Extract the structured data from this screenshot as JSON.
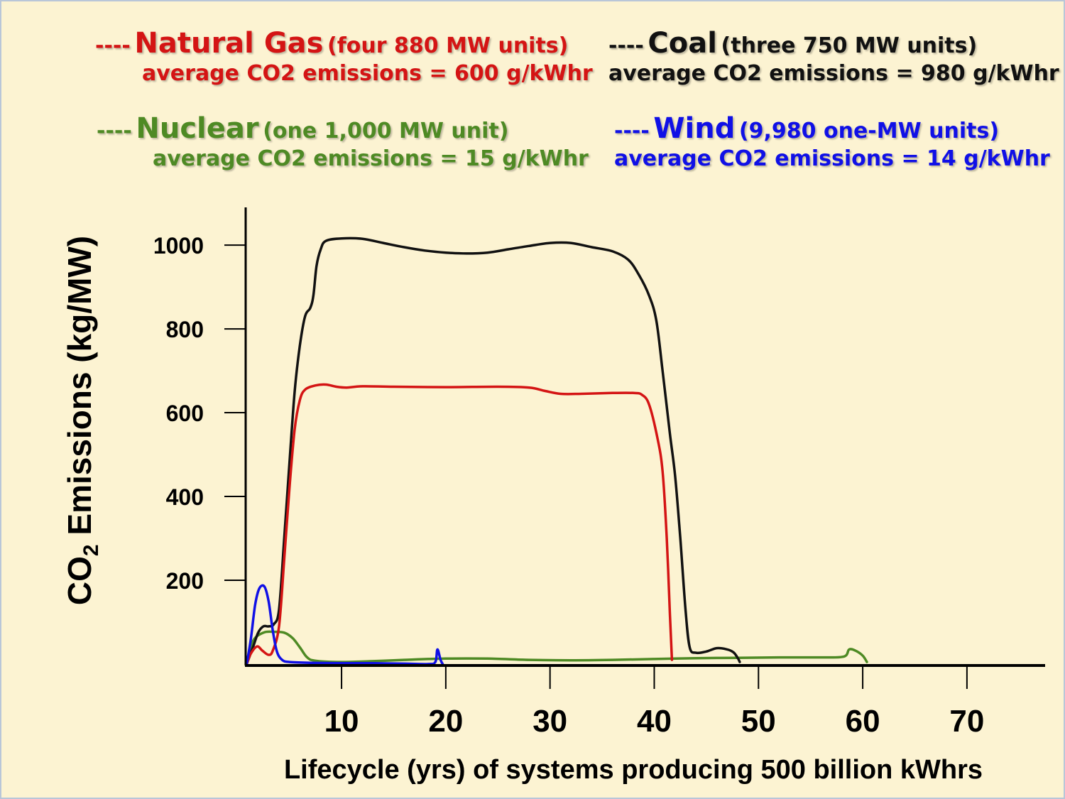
{
  "legend": {
    "gas": {
      "dash": "----",
      "name": "Natural Gas",
      "units": "(four 880 MW units)",
      "emissions": "average CO2 emissions = 600 g/kWhr",
      "color": "#d41414"
    },
    "coal": {
      "dash": "----",
      "name": "Coal",
      "units": "(three 750 MW units)",
      "emissions": "average CO2 emissions = 980 g/kWhr",
      "color": "#111111"
    },
    "nuclear": {
      "dash": "----",
      "name": "Nuclear",
      "units": "(one 1,000 MW unit)",
      "emissions": "average CO2 emissions = 15 g/kWhr",
      "color": "#4e8a24"
    },
    "wind": {
      "dash": "----",
      "name": "Wind",
      "units": "(9,980 one-MW units)",
      "emissions": "average CO2 emissions = 14 g/kWhr",
      "color": "#1010e6"
    }
  },
  "chart_data": {
    "type": "line",
    "ylabel": {
      "prefix": "CO",
      "subscript": "2",
      "suffix": " Emissions (kg/MW)"
    },
    "xlabel": "Lifecycle (yrs) of systems producing 500 billion kWhrs",
    "yticks": [
      "200",
      "400",
      "600",
      "800",
      "1000"
    ],
    "xticks": [
      "10",
      "20",
      "30",
      "40",
      "50",
      "60",
      "70"
    ],
    "ytick_values": [
      200,
      400,
      600,
      800,
      1000
    ],
    "xtick_values": [
      10,
      20,
      30,
      40,
      50,
      60,
      70
    ],
    "xlim": [
      0.8,
      77.5
    ],
    "ylim": [
      0,
      1090
    ],
    "series": [
      {
        "key": "coal",
        "name": "Coal",
        "color": "#111111",
        "points": [
          [
            0.9,
            0
          ],
          [
            1.5,
            40
          ],
          [
            2,
            75
          ],
          [
            2.5,
            90
          ],
          [
            3,
            90
          ],
          [
            3.5,
            95
          ],
          [
            4,
            130
          ],
          [
            4.5,
            300
          ],
          [
            5,
            480
          ],
          [
            5.5,
            650
          ],
          [
            6,
            760
          ],
          [
            6.5,
            830
          ],
          [
            7,
            850
          ],
          [
            7.3,
            880
          ],
          [
            7.6,
            950
          ],
          [
            8,
            990
          ],
          [
            8.5,
            1010
          ],
          [
            10,
            1016
          ],
          [
            12,
            1015
          ],
          [
            14,
            1005
          ],
          [
            16,
            995
          ],
          [
            18,
            987
          ],
          [
            20,
            982
          ],
          [
            22,
            980
          ],
          [
            24,
            982
          ],
          [
            26,
            990
          ],
          [
            28,
            998
          ],
          [
            30,
            1005
          ],
          [
            32,
            1005
          ],
          [
            34,
            995
          ],
          [
            36,
            985
          ],
          [
            37.5,
            965
          ],
          [
            38.5,
            930
          ],
          [
            39.5,
            880
          ],
          [
            40.2,
            820
          ],
          [
            40.8,
            700
          ],
          [
            41.5,
            550
          ],
          [
            42,
            450
          ],
          [
            42.5,
            300
          ],
          [
            43,
            130
          ],
          [
            43.4,
            40
          ],
          [
            44,
            27
          ],
          [
            45,
            30
          ],
          [
            46,
            38
          ],
          [
            47,
            35
          ],
          [
            47.6,
            28
          ],
          [
            48,
            15
          ],
          [
            48.2,
            5
          ]
        ]
      },
      {
        "key": "gas",
        "name": "Natural Gas",
        "color": "#d41414",
        "points": [
          [
            0.9,
            0
          ],
          [
            1.3,
            25
          ],
          [
            1.9,
            42
          ],
          [
            2.4,
            32
          ],
          [
            3,
            22
          ],
          [
            3.4,
            32
          ],
          [
            4,
            90
          ],
          [
            4.5,
            250
          ],
          [
            5,
            420
          ],
          [
            5.5,
            560
          ],
          [
            6,
            630
          ],
          [
            6.5,
            655
          ],
          [
            7.5,
            665
          ],
          [
            8.5,
            667
          ],
          [
            9.5,
            662
          ],
          [
            10.5,
            660
          ],
          [
            12,
            663
          ],
          [
            15,
            662
          ],
          [
            20,
            661
          ],
          [
            25,
            662
          ],
          [
            28,
            660
          ],
          [
            29.5,
            652
          ],
          [
            31,
            645
          ],
          [
            33,
            645
          ],
          [
            36,
            647
          ],
          [
            38,
            647
          ],
          [
            38.8,
            643
          ],
          [
            39.5,
            620
          ],
          [
            40.3,
            540
          ],
          [
            40.8,
            460
          ],
          [
            41.2,
            300
          ],
          [
            41.5,
            120
          ],
          [
            41.7,
            10
          ]
        ]
      },
      {
        "key": "nuclear",
        "name": "Nuclear",
        "color": "#4e8a24",
        "points": [
          [
            0.9,
            0
          ],
          [
            1.5,
            55
          ],
          [
            2.5,
            75
          ],
          [
            3.5,
            77
          ],
          [
            4.5,
            75
          ],
          [
            5.3,
            62
          ],
          [
            6,
            40
          ],
          [
            6.7,
            16
          ],
          [
            7.5,
            8
          ],
          [
            10,
            5
          ],
          [
            13,
            7
          ],
          [
            16,
            10
          ],
          [
            20,
            13
          ],
          [
            24,
            13
          ],
          [
            28,
            10
          ],
          [
            32,
            9
          ],
          [
            36,
            10
          ],
          [
            40,
            12
          ],
          [
            44,
            14
          ],
          [
            48,
            15
          ],
          [
            52,
            16
          ],
          [
            56,
            16
          ],
          [
            58.2,
            18
          ],
          [
            58.7,
            35
          ],
          [
            59.3,
            32
          ],
          [
            60,
            20
          ],
          [
            60.4,
            5
          ]
        ]
      },
      {
        "key": "wind",
        "name": "Wind",
        "color": "#1010e6",
        "points": [
          [
            0.9,
            0
          ],
          [
            1.3,
            60
          ],
          [
            1.7,
            140
          ],
          [
            2.1,
            180
          ],
          [
            2.6,
            185
          ],
          [
            3,
            150
          ],
          [
            3.4,
            80
          ],
          [
            3.8,
            30
          ],
          [
            4.3,
            10
          ],
          [
            5,
            5
          ],
          [
            7,
            3
          ],
          [
            10,
            2
          ],
          [
            13,
            2
          ],
          [
            16,
            1
          ],
          [
            18.3,
            0
          ],
          [
            19,
            5
          ],
          [
            19.2,
            35
          ],
          [
            19.5,
            10
          ],
          [
            19.7,
            0
          ]
        ]
      }
    ]
  }
}
